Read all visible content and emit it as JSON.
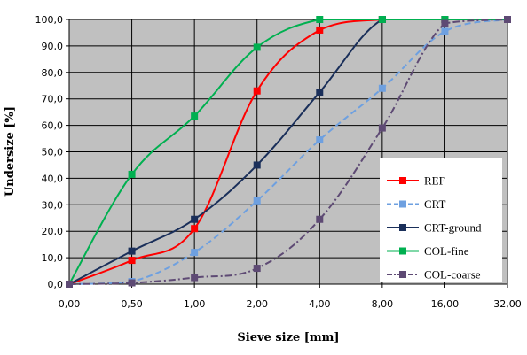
{
  "chart_data": {
    "type": "line",
    "xlabel": "Sieve size [mm]",
    "ylabel": "Undersize [%]",
    "x_tick_labels": [
      "0,00",
      "0,50",
      "1,00",
      "2,00",
      "4,00",
      "8,00",
      "16,00",
      "32,00"
    ],
    "y_tick_labels": [
      "0,0",
      "10,0",
      "20,0",
      "30,0",
      "40,0",
      "50,0",
      "60,0",
      "70,0",
      "80,0",
      "90,0",
      "100,0"
    ],
    "ylim": [
      0,
      100
    ],
    "grid": true,
    "legend_position": "right",
    "plot_background": "#c0c0c0",
    "series": [
      {
        "name": "REF",
        "color": "#ff0000",
        "dash": "solid",
        "marker": "square",
        "values": [
          0,
          9,
          21,
          73,
          96,
          100,
          100,
          100
        ]
      },
      {
        "name": "CRT",
        "color": "#6ea0e0",
        "dash": "dash",
        "marker": "square",
        "values": [
          0,
          1,
          12,
          31.5,
          54.5,
          74,
          95.5,
          100
        ]
      },
      {
        "name": "CRT-ground",
        "color": "#1a2f5a",
        "dash": "solid",
        "marker": "square",
        "values": [
          0,
          12.5,
          24.5,
          45,
          72.5,
          100,
          100,
          100
        ]
      },
      {
        "name": "COL-fine",
        "color": "#00b050",
        "dash": "solid",
        "marker": "square",
        "values": [
          0,
          41.5,
          63.5,
          89.5,
          100,
          100,
          100,
          100
        ]
      },
      {
        "name": "COL-coarse",
        "color": "#5e4a74",
        "dash": "dashdot",
        "marker": "square",
        "values": [
          0,
          0.5,
          2.5,
          6,
          24.5,
          59,
          98.5,
          100
        ]
      }
    ]
  }
}
